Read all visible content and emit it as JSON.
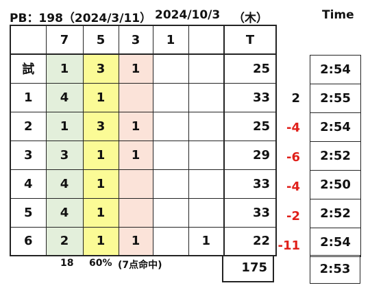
{
  "header": {
    "pb": "PB：198（2024/3/11）",
    "date": "2024/10/3",
    "weekday": "（木）",
    "time_label": "Time"
  },
  "columns": [
    "",
    "7",
    "5",
    "3",
    "1",
    "",
    "T"
  ],
  "rows": [
    {
      "label": "試",
      "c7": "1",
      "c5": "3",
      "c3": "1",
      "c1": "",
      "cx": "",
      "total": "25",
      "diff": "",
      "time": "2:54"
    },
    {
      "label": "1",
      "c7": "4",
      "c5": "1",
      "c3": "",
      "c1": "",
      "cx": "",
      "total": "33",
      "diff": "2",
      "time": "2:55"
    },
    {
      "label": "2",
      "c7": "1",
      "c5": "3",
      "c3": "1",
      "c1": "",
      "cx": "",
      "total": "25",
      "diff": "-4",
      "time": "2:54"
    },
    {
      "label": "3",
      "c7": "3",
      "c5": "1",
      "c3": "1",
      "c1": "",
      "cx": "",
      "total": "29",
      "diff": "-6",
      "time": "2:52"
    },
    {
      "label": "4",
      "c7": "4",
      "c5": "1",
      "c3": "",
      "c1": "",
      "cx": "",
      "total": "33",
      "diff": "-4",
      "time": "2:50"
    },
    {
      "label": "5",
      "c7": "4",
      "c5": "1",
      "c3": "",
      "c1": "",
      "cx": "",
      "total": "33",
      "diff": "-2",
      "time": "2:52"
    },
    {
      "label": "6",
      "c7": "2",
      "c5": "1",
      "c3": "1",
      "c1": "",
      "cx": "1",
      "total": "22",
      "diff": "-11",
      "time": "2:54"
    }
  ],
  "summary": {
    "count": "18",
    "percent": "60%",
    "note": "(7点命中)",
    "grand_total": "175",
    "avg_time": "2:53"
  },
  "colors": {
    "col7": "#e3efdb",
    "col5": "#fbfb96",
    "col3": "#fbe3d9",
    "negative": "#e0201a",
    "positive": "#111111"
  }
}
